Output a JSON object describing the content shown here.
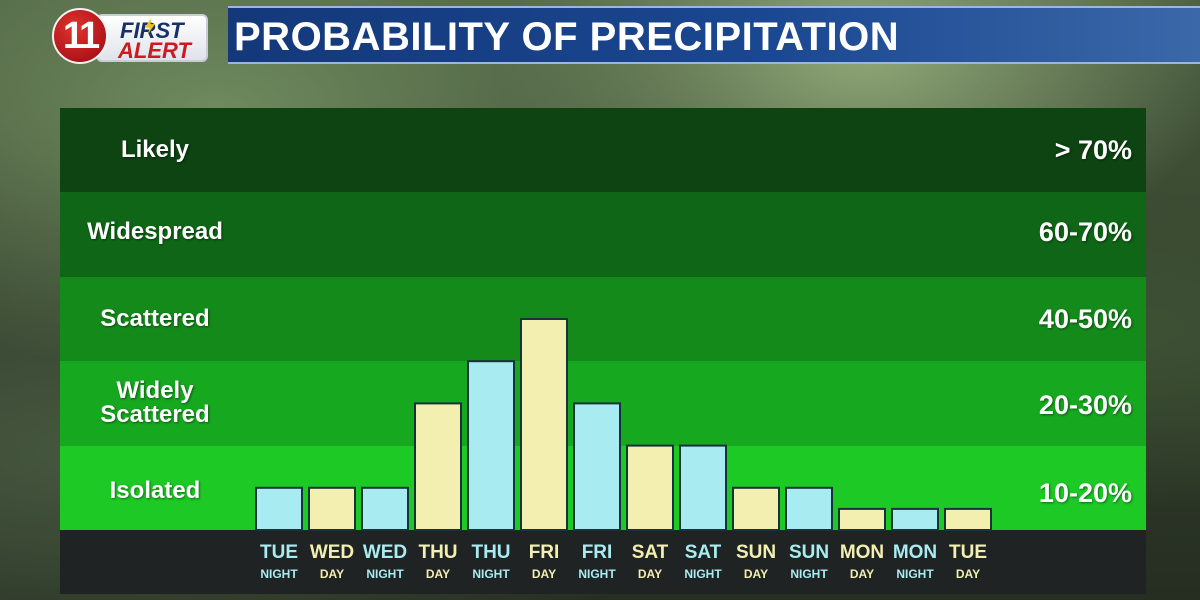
{
  "header": {
    "logo_number": "11",
    "logo_first": "FIRST",
    "logo_alert": "ALERT",
    "title": "PROBABILITY OF PRECIPITATION"
  },
  "colors": {
    "day_bar": "#f2efb0",
    "night_bar": "#a8ecf2",
    "bar_outline": "#17323a",
    "band_likely": "#0d4412",
    "band_widespread": "#0f6616",
    "band_scattered": "#138a1a",
    "band_widely_scattered": "#16a81f",
    "band_isolated": "#1cc925",
    "axis_strip": "#202323",
    "day_label": "#f2efb0",
    "night_label": "#a8ecf2"
  },
  "chart_data": {
    "type": "bar",
    "title": "PROBABILITY OF PRECIPITATION",
    "y_scale": "categorical probability bands",
    "bands": [
      {
        "label": "Likely",
        "range": "> 70%"
      },
      {
        "label": "Widespread",
        "range": "60-70%"
      },
      {
        "label": "Scattered",
        "range": "40-50%"
      },
      {
        "label": "Widely\nScattered",
        "range": "20-30%"
      },
      {
        "label": "Isolated",
        "range": "10-20%"
      }
    ],
    "categories": [
      {
        "day": "TUE",
        "period": "NIGHT"
      },
      {
        "day": "WED",
        "period": "DAY"
      },
      {
        "day": "WED",
        "period": "NIGHT"
      },
      {
        "day": "THU",
        "period": "DAY"
      },
      {
        "day": "THU",
        "period": "NIGHT"
      },
      {
        "day": "FRI",
        "period": "DAY"
      },
      {
        "day": "FRI",
        "period": "NIGHT"
      },
      {
        "day": "SAT",
        "period": "DAY"
      },
      {
        "day": "SAT",
        "period": "NIGHT"
      },
      {
        "day": "SUN",
        "period": "DAY"
      },
      {
        "day": "SUN",
        "period": "NIGHT"
      },
      {
        "day": "MON",
        "period": "DAY"
      },
      {
        "day": "MON",
        "period": "NIGHT"
      },
      {
        "day": "TUE",
        "period": "DAY"
      }
    ],
    "values_in_band_units": [
      0.5,
      0.5,
      0.5,
      1.5,
      2.0,
      2.5,
      1.5,
      1.0,
      1.0,
      0.5,
      0.5,
      0.25,
      0.25,
      0.25
    ],
    "ylim_in_band_units": [
      0,
      5
    ],
    "grid": false,
    "legend": "none"
  }
}
